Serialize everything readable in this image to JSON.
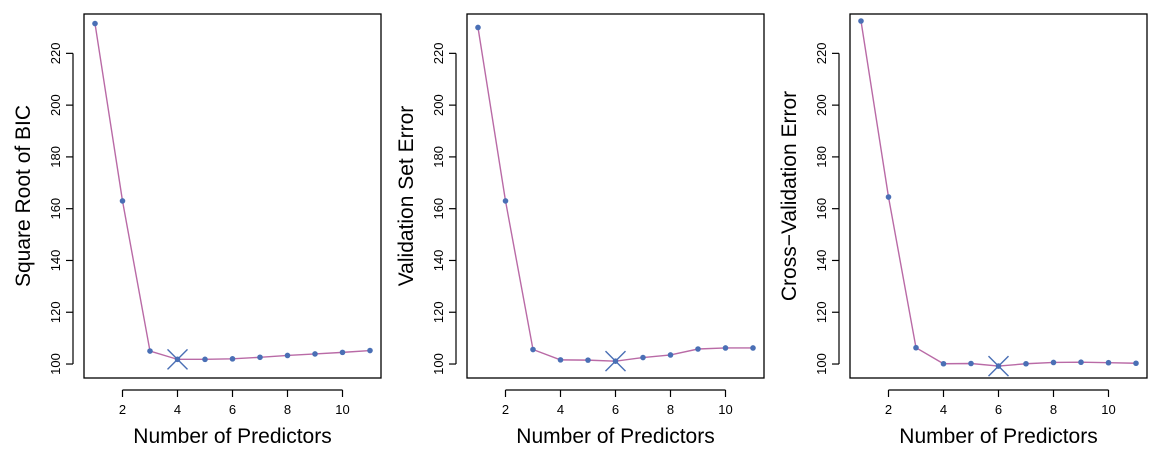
{
  "chart_data": [
    {
      "type": "line",
      "title": "",
      "xlabel": "Number of Predictors",
      "ylabel": "Square Root of BIC",
      "x": [
        1,
        2,
        3,
        4,
        5,
        6,
        7,
        8,
        9,
        10,
        11
      ],
      "values": [
        231.5,
        163,
        105,
        101.8,
        101.8,
        102,
        102.6,
        103.3,
        103.9,
        104.5,
        105.2
      ],
      "min_index_marked": 4,
      "xticks": [
        2,
        4,
        6,
        8,
        10
      ],
      "yticks": [
        100,
        120,
        140,
        160,
        180,
        200,
        220
      ],
      "xlim": [
        0.6,
        11.4
      ],
      "ylim": [
        94.6,
        235.2
      ],
      "grid": false
    },
    {
      "type": "line",
      "title": "",
      "xlabel": "Number of Predictors",
      "ylabel": "Validation Set Error",
      "x": [
        1,
        2,
        3,
        4,
        5,
        6,
        7,
        8,
        9,
        10,
        11
      ],
      "values": [
        230,
        163,
        105.6,
        101.6,
        101.5,
        101.1,
        102.5,
        103.5,
        105.8,
        106.2,
        106.2
      ],
      "min_index_marked": 6,
      "xticks": [
        2,
        4,
        6,
        8,
        10
      ],
      "yticks": [
        100,
        120,
        140,
        160,
        180,
        200,
        220
      ],
      "xlim": [
        0.6,
        11.4
      ],
      "ylim": [
        94.6,
        235.2
      ],
      "grid": false
    },
    {
      "type": "line",
      "title": "",
      "xlabel": "Number of Predictors",
      "ylabel": "Cross−Validation Error",
      "x": [
        1,
        2,
        3,
        4,
        5,
        6,
        7,
        8,
        9,
        10,
        11
      ],
      "values": [
        232.5,
        164.5,
        106.3,
        100.1,
        100.2,
        99.2,
        100.1,
        100.6,
        100.7,
        100.5,
        100.3
      ],
      "min_index_marked": 6,
      "xticks": [
        2,
        4,
        6,
        8,
        10
      ],
      "yticks": [
        100,
        120,
        140,
        160,
        180,
        200,
        220
      ],
      "xlim": [
        0.6,
        11.4
      ],
      "ylim": [
        94.6,
        235.2
      ],
      "grid": false
    }
  ],
  "colors": {
    "line": "#b96aa6",
    "point": "#4a6fb5",
    "axis": "#000000"
  }
}
